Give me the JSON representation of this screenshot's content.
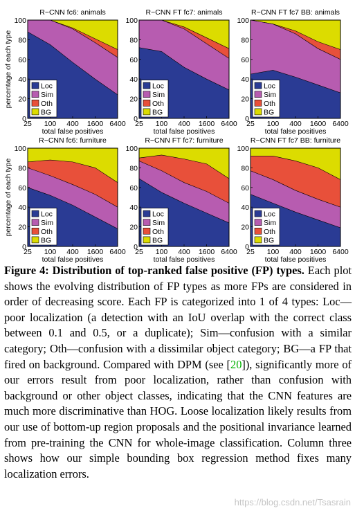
{
  "colors": {
    "Loc": "#2a3b94",
    "Sim": "#b75cb0",
    "Oth": "#e8503a",
    "BG": "#dcdc00"
  },
  "chart_data": [
    {
      "type": "area",
      "title": "R−CNN fc6: animals",
      "xlabel": "total false positives",
      "ylabel": "percentage of each type",
      "x": [
        25,
        100,
        400,
        1600,
        6400
      ],
      "xscale": "log",
      "ylim": [
        0,
        100
      ],
      "yticks": [
        0,
        20,
        40,
        60,
        80,
        100
      ],
      "legend": "bottom-left",
      "series": [
        {
          "name": "Loc",
          "values": [
            88,
            75,
            57,
            40,
            24
          ]
        },
        {
          "name": "Sim",
          "values": [
            100,
            100,
            91,
            77,
            62
          ]
        },
        {
          "name": "Oth",
          "values": [
            100,
            100,
            92,
            81,
            70
          ]
        },
        {
          "name": "BG",
          "values": [
            100,
            100,
            100,
            100,
            100
          ]
        }
      ]
    },
    {
      "type": "area",
      "title": "R−CNN FT fc7: animals",
      "xlabel": "total false positives",
      "ylabel": "",
      "x": [
        25,
        100,
        400,
        1600,
        6400
      ],
      "xscale": "log",
      "ylim": [
        0,
        100
      ],
      "yticks": [
        0,
        20,
        40,
        60,
        80,
        100
      ],
      "legend": "bottom-left",
      "series": [
        {
          "name": "Loc",
          "values": [
            72,
            68,
            52,
            40,
            29
          ]
        },
        {
          "name": "Sim",
          "values": [
            100,
            100,
            91,
            76,
            61
          ]
        },
        {
          "name": "Oth",
          "values": [
            100,
            100,
            93,
            82,
            71
          ]
        },
        {
          "name": "BG",
          "values": [
            100,
            100,
            100,
            100,
            100
          ]
        }
      ]
    },
    {
      "type": "area",
      "title": "R−CNN FT fc7 BB: animals",
      "xlabel": "total false positives",
      "ylabel": "",
      "x": [
        25,
        100,
        400,
        1600,
        6400
      ],
      "xscale": "log",
      "ylim": [
        0,
        100
      ],
      "yticks": [
        0,
        20,
        40,
        60,
        80,
        100
      ],
      "legend": "bottom-left",
      "series": [
        {
          "name": "Loc",
          "values": [
            45,
            49,
            42,
            34,
            26
          ]
        },
        {
          "name": "Sim",
          "values": [
            100,
            96,
            86,
            71,
            60
          ]
        },
        {
          "name": "Oth",
          "values": [
            100,
            96,
            89,
            78,
            70
          ]
        },
        {
          "name": "BG",
          "values": [
            100,
            100,
            100,
            100,
            100
          ]
        }
      ]
    },
    {
      "type": "area",
      "title": "R−CNN fc6: furniture",
      "xlabel": "total false positives",
      "ylabel": "percentage of each type",
      "x": [
        25,
        100,
        400,
        1600,
        6400
      ],
      "xscale": "log",
      "ylim": [
        0,
        100
      ],
      "yticks": [
        0,
        20,
        40,
        60,
        80,
        100
      ],
      "legend": "bottom-left",
      "series": [
        {
          "name": "Loc",
          "values": [
            60,
            52,
            42,
            30,
            18
          ]
        },
        {
          "name": "Sim",
          "values": [
            80,
            72,
            63,
            53,
            40
          ]
        },
        {
          "name": "Oth",
          "values": [
            86,
            88,
            86,
            80,
            65
          ]
        },
        {
          "name": "BG",
          "values": [
            100,
            100,
            100,
            100,
            100
          ]
        }
      ]
    },
    {
      "type": "area",
      "title": "R−CNN FT fc7: furniture",
      "xlabel": "total false positives",
      "ylabel": "",
      "x": [
        25,
        100,
        400,
        1600,
        6400
      ],
      "xscale": "log",
      "ylim": [
        0,
        100
      ],
      "yticks": [
        0,
        20,
        40,
        60,
        80,
        100
      ],
      "legend": "bottom-left",
      "series": [
        {
          "name": "Loc",
          "values": [
            69,
            55,
            44,
            34,
            24
          ]
        },
        {
          "name": "Sim",
          "values": [
            87,
            77,
            65,
            56,
            44
          ]
        },
        {
          "name": "Oth",
          "values": [
            90,
            93,
            89,
            84,
            69
          ]
        },
        {
          "name": "BG",
          "values": [
            100,
            100,
            100,
            100,
            100
          ]
        }
      ]
    },
    {
      "type": "area",
      "title": "R−CNN FT fc7 BB: furniture",
      "xlabel": "total false positives",
      "ylabel": "",
      "x": [
        25,
        100,
        400,
        1600,
        6400
      ],
      "xscale": "log",
      "ylim": [
        0,
        100
      ],
      "yticks": [
        0,
        20,
        40,
        60,
        80,
        100
      ],
      "legend": "bottom-left",
      "series": [
        {
          "name": "Loc",
          "values": [
            53,
            44,
            35,
            27,
            19
          ]
        },
        {
          "name": "Sim",
          "values": [
            77,
            68,
            57,
            48,
            40
          ]
        },
        {
          "name": "Oth",
          "values": [
            92,
            92,
            87,
            80,
            68
          ]
        },
        {
          "name": "BG",
          "values": [
            100,
            100,
            100,
            100,
            100
          ]
        }
      ]
    }
  ],
  "caption": {
    "label": "Figure 4: Distribution of top-ranked false positive (FP) types.",
    "text1": " Each plot shows the evolving distribution of FP types as more FPs are considered in order of decreasing score. Each FP is categorized into 1 of 4 types: Loc—poor localization (a detection with an IoU overlap with the correct class between 0.1 and 0.5, or a duplicate); Sim—confusion with a similar category; Oth—confusion with a dissimilar object category; BG—a FP that fired on background. Compared with DPM (see [",
    "ref": "20",
    "text2": "]), significantly more of our errors result from poor localization, rather than confusion with background or other object classes, indicating that the CNN features are much more discriminative than HOG. Loose localization likely results from our use of bottom-up region proposals and the positional invariance learned from pre-training the CNN for whole-image classification. Column three shows how our simple bounding box regression method fixes many localization errors."
  },
  "watermark": "https://blog.csdn.net/Tsasrain"
}
